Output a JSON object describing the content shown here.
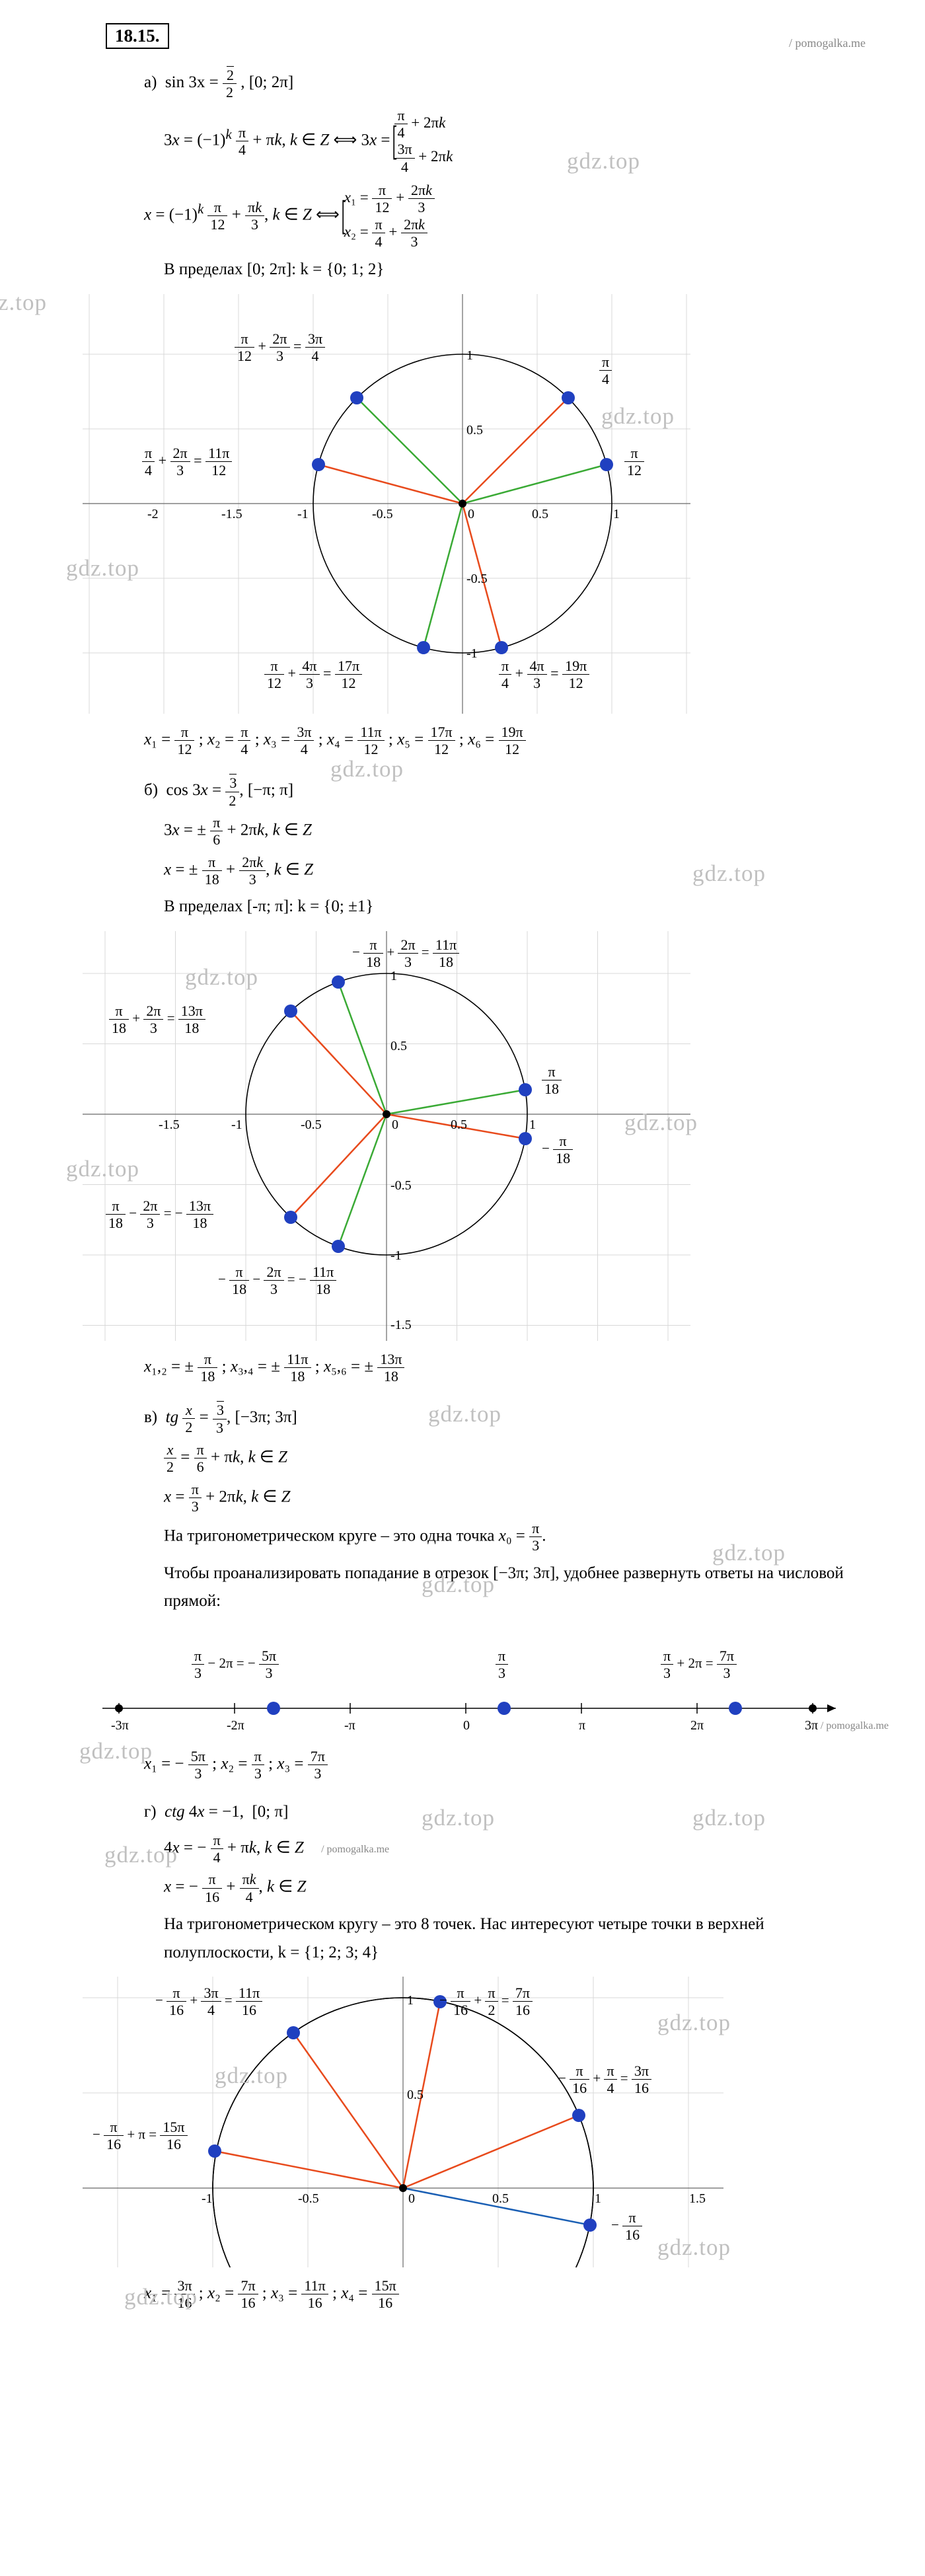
{
  "problem_number": "18.15.",
  "source": "/ pomogalka.me",
  "watermark": "gdz.top",
  "part_a": {
    "label": "а)",
    "eq": "sin 3x = ",
    "rhs_num": "√2",
    "rhs_den": "2",
    "interval": ", [0; 2π]",
    "line2_lhs": "3x = (−1)",
    "line2_sup": "k",
    "line2_mid_n": "π",
    "line2_mid_d": "4",
    "line2_tail": " + πk, k ∈ Z ⟺ 3x = ",
    "br1_r1_n": "π",
    "br1_r1_d": "4",
    "br1_r1_t": " + 2πk",
    "br1_r2_n": "3π",
    "br1_r2_d": "4",
    "br1_r2_t": " + 2πk",
    "line3_lhs": "x = (−1)",
    "line3_fr1_n": "π",
    "line3_fr1_d": "12",
    "line3_mid": " + ",
    "line3_fr2_n": "πk",
    "line3_fr2_d": "3",
    "line3_tail": ", k ∈ Z ⟺ ",
    "br2_r1_l": "x₁ = ",
    "br2_r1_n": "π",
    "br2_r1_d": "12",
    "br2_r1_m": " + ",
    "br2_r1_n2": "2πk",
    "br2_r1_d2": "3",
    "br2_r2_l": "x₂ = ",
    "br2_r2_n": "π",
    "br2_r2_d": "4",
    "br2_r2_m": " + ",
    "br2_r2_n2": "2πk",
    "br2_r2_d2": "3",
    "interval_text": "В пределах [0; 2π]: k = {0; 1; 2}",
    "chart": {
      "type": "unit_circle",
      "radius": 1,
      "xlim": [
        -2.3,
        1.4
      ],
      "ylim": [
        -1.4,
        1.4
      ],
      "ticks_x": [
        -2,
        -1.5,
        -1,
        -0.5,
        0,
        0.5,
        1
      ],
      "ticks_y": [
        -1,
        -0.5,
        0.5,
        1
      ],
      "rays": [
        {
          "angle_frac": "π/12",
          "color": "#3aaa35"
        },
        {
          "angle_frac": "π/4",
          "color": "#e84a1c"
        },
        {
          "angle_frac": "3π/4",
          "color": "#3aaa35"
        },
        {
          "angle_frac": "11π/12",
          "color": "#e84a1c"
        },
        {
          "angle_frac": "17π/12",
          "color": "#3aaa35"
        },
        {
          "angle_frac": "19π/12",
          "color": "#e84a1c"
        }
      ],
      "labels": [
        {
          "text_l": "π",
          "text_ld": "12",
          "plus": " + ",
          "text_r": "2π",
          "text_rd": "3",
          "eq": " = ",
          "res_n": "3π",
          "res_d": "4",
          "pos": "tl"
        },
        {
          "res_n": "π",
          "res_d": "4",
          "pos": "tr"
        },
        {
          "text_l": "π",
          "text_ld": "4",
          "plus": " + ",
          "text_r": "2π",
          "text_rd": "3",
          "eq": " = ",
          "res_n": "11π",
          "res_d": "12",
          "pos": "ml"
        },
        {
          "res_n": "π",
          "res_d": "12",
          "pos": "mr"
        },
        {
          "text_l": "π",
          "text_ld": "12",
          "plus": " + ",
          "text_r": "4π",
          "text_rd": "3",
          "eq": " = ",
          "res_n": "17π",
          "res_d": "12",
          "pos": "bl"
        },
        {
          "text_l": "π",
          "text_ld": "4",
          "plus": " + ",
          "text_r": "4π",
          "text_rd": "3",
          "eq": " = ",
          "res_n": "19π",
          "res_d": "12",
          "pos": "br"
        }
      ]
    },
    "answer": "x₁ = π/12 ; x₂ = π/4 ; x₃ = 3π/4 ; x₄ = 11π/12 ; x₅ = 17π/12 ; x₆ = 19π/12"
  },
  "part_b": {
    "label": "б)",
    "eq": "cos 3x = ",
    "rhs_num": "√3",
    "rhs_den": "2",
    "interval": ", [−π; π]",
    "line2": "3x = ± π/6 + 2πk, k ∈ Z",
    "line3": "x = ± π/18 + 2πk/3 , k ∈ Z",
    "interval_text": "В пределах [-π; π]: k = {0; ±1}",
    "chart": {
      "type": "unit_circle",
      "xlim": [
        -1.6,
        1.6
      ],
      "ylim": [
        -1.6,
        1.3
      ],
      "labels": [
        {
          "lhs": "π/18 + 2π/3",
          "eq": " = ",
          "res": "13π/18",
          "pos": "tl"
        },
        {
          "lhs": "−π/18 + 2π/3",
          "eq": " = ",
          "res": "11π/18",
          "pos": "tc"
        },
        {
          "res": "π/18",
          "pos": "mr"
        },
        {
          "res": "− π/18",
          "pos": "mr2"
        },
        {
          "lhs": "π/18 − 2π/3",
          "eq": " = − ",
          "res": "13π/18",
          "pos": "bl"
        },
        {
          "lhs": "−π/18 − 2π/3",
          "eq": " = − ",
          "res": "11π/18",
          "pos": "bc"
        }
      ]
    },
    "answer": "x₁,₂ = ± π/18 ; x₃,₄ = ± 11π/18 ; x₅,₆ = ± 13π/18"
  },
  "part_c": {
    "label": "в)",
    "eq_lhs": "tg ",
    "eq_arg_n": "x",
    "eq_arg_d": "2",
    "eq_mid": " = ",
    "rhs_num": "√3",
    "rhs_den": "3",
    "interval": ", [−3π; 3π]",
    "line2": "x/2 = π/6 + πk, k ∈ Z",
    "line3": "x = π/3 + 2πk, k ∈ Z",
    "text1": "На тригонометрическом круге – это одна точка x₀ = π/3 .",
    "text2": "Чтобы проанализировать попадание в отрезок [−3π; 3π], удобнее развернуть ответы на числовой прямой:",
    "numline": {
      "xmin": -3,
      "xmax": 3,
      "ticks": [
        "-3π",
        "-2π",
        "-π",
        "0",
        "π",
        "2π",
        "3π"
      ],
      "points": [
        {
          "x": -1.667,
          "label_lhs": "π/3 − 2π",
          "label_eq": " = − ",
          "label_n": "5π",
          "label_d": "3"
        },
        {
          "x": 0.333,
          "label_n": "π",
          "label_d": "3"
        },
        {
          "x": 2.333,
          "label_lhs": "π/3 + 2π",
          "label_eq": " = ",
          "label_n": "7π",
          "label_d": "3"
        }
      ]
    },
    "answer": "x₁ = − 5π/3 ; x₂ = π/3 ; x₃ = 7π/3"
  },
  "part_d": {
    "label": "г)",
    "eq": "ctg 4x = −1,  [0; π]",
    "line2": "4x = − π/4 + πk, k ∈ Z",
    "line3": "x = − π/16 + πk/4 , k ∈ Z",
    "text1": "На тригонометрическом кругу – это 8 точек. Нас интересуют четыре точки в верхней полуплоскости, k = {1; 2; 3; 4}",
    "chart": {
      "type": "unit_circle",
      "xlim": [
        -1.7,
        1.7
      ],
      "ylim": [
        -0.6,
        1.2
      ],
      "labels": [
        {
          "lhs": "−π/16 + 3π/4",
          "eq": " = ",
          "res": "11π/16"
        },
        {
          "lhs": "−π/16 + π/2",
          "eq": " = ",
          "res": "7π/16"
        },
        {
          "lhs": "−π/16 + π/4",
          "eq": " = ",
          "res": "3π/16"
        },
        {
          "lhs": "−π/16 + π",
          "eq": " = ",
          "res": "15π/16"
        },
        {
          "res": "− π/16"
        }
      ]
    },
    "answer": "x₁ = 3π/16 ; x₂ = 7π/16 ; x₃ = 11π/16 ; x₄ = 15π/16"
  }
}
